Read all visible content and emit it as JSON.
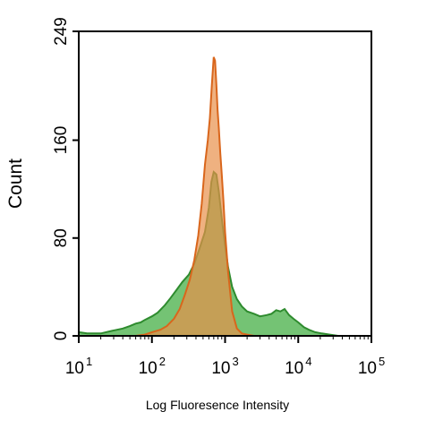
{
  "chart_data": {
    "type": "area",
    "title": "",
    "xlabel": "Log Fluoresence Intensity",
    "ylabel": "Count",
    "x_scale": "log",
    "xlim": [
      10,
      100000
    ],
    "ylim": [
      0,
      249
    ],
    "x_ticks": [
      {
        "base": "10",
        "exp": "1"
      },
      {
        "base": "10",
        "exp": "2"
      },
      {
        "base": "10",
        "exp": "3"
      },
      {
        "base": "10",
        "exp": "4"
      },
      {
        "base": "10",
        "exp": "5"
      }
    ],
    "y_ticks": [
      "0",
      "80",
      "160",
      "249"
    ],
    "y_tick_values": [
      0,
      80,
      160,
      249
    ],
    "grid": false,
    "series": [
      {
        "color": "#2e8b2e",
        "fill": "#5cb85c",
        "x": [
          10,
          13,
          20,
          28,
          40,
          50,
          60,
          70,
          80,
          100,
          120,
          150,
          180,
          220,
          260,
          320,
          380,
          450,
          530,
          600,
          650,
          700,
          760,
          820,
          900,
          1000,
          1100,
          1250,
          1450,
          1700,
          2000,
          2500,
          3000,
          3700,
          4300,
          5000,
          5700,
          6500,
          7500,
          8600,
          10000,
          12000,
          14000,
          17000,
          21000,
          27000,
          35000,
          50000,
          100000
        ],
        "values": [
          3,
          2,
          2,
          4,
          6,
          8,
          10,
          11,
          13,
          16,
          19,
          25,
          31,
          38,
          44,
          50,
          59,
          72,
          85,
          105,
          126,
          134,
          132,
          118,
          96,
          74,
          56,
          40,
          30,
          24,
          20,
          18,
          16,
          17,
          18,
          21,
          20,
          22,
          17,
          14,
          11,
          7,
          5,
          3,
          2,
          1,
          0,
          0,
          0
        ]
      },
      {
        "color": "#d9661c",
        "fill": "#e8904a",
        "x": [
          10,
          40,
          60,
          80,
          100,
          130,
          160,
          200,
          240,
          280,
          330,
          380,
          430,
          480,
          530,
          580,
          620,
          660,
          700,
          730,
          760,
          790,
          820,
          860,
          900,
          950,
          1000,
          1100,
          1250,
          1450,
          1700,
          2000,
          2500,
          3000
        ],
        "values": [
          0,
          0,
          0,
          1,
          3,
          5,
          8,
          14,
          22,
          33,
          46,
          62,
          82,
          108,
          140,
          160,
          178,
          205,
          228,
          225,
          205,
          185,
          170,
          150,
          132,
          110,
          85,
          52,
          20,
          6,
          2,
          1,
          0,
          0
        ]
      }
    ]
  }
}
